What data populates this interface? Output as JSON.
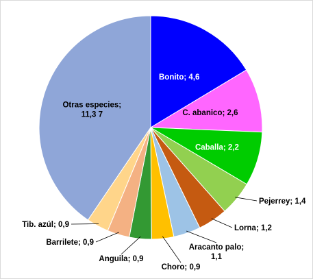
{
  "chart_data": {
    "type": "pie",
    "title": "",
    "start_angle_deg": 0,
    "direction": "clockwise",
    "legend": "none",
    "slices": [
      {
        "category": "Bonito",
        "value": 4.6,
        "label_lines": [
          "Bonito; 4,6"
        ],
        "color": "#0000FF",
        "label_color": "#FFFFFF",
        "label_mode": "inside"
      },
      {
        "category": "C. abanico",
        "value": 2.6,
        "label_lines": [
          "C. abanico; 2,6"
        ],
        "color": "#FF66FF",
        "label_color": "#000000",
        "label_mode": "inside"
      },
      {
        "category": "Caballa",
        "value": 2.2,
        "label_lines": [
          "Caballa; 2,2"
        ],
        "color": "#00CC00",
        "label_color": "#FFFFFF",
        "label_mode": "inside"
      },
      {
        "category": "Pejerrey",
        "value": 1.4,
        "label_lines": [
          "Pejerrey; 1,4"
        ],
        "color": "#92D050",
        "label_color": "#000000",
        "label_mode": "outside"
      },
      {
        "category": "Lorna",
        "value": 1.2,
        "label_lines": [
          "Lorna; 1,2"
        ],
        "color": "#C55A11",
        "label_color": "#000000",
        "label_mode": "outside"
      },
      {
        "category": "Aracanto palo",
        "value": 1.1,
        "label_lines": [
          "Aracanto palo;",
          "1,1"
        ],
        "color": "#9DC3E6",
        "label_color": "#000000",
        "label_mode": "outside"
      },
      {
        "category": "Choro",
        "value": 0.9,
        "label_lines": [
          "Choro; 0,9"
        ],
        "color": "#FFC000",
        "label_color": "#000000",
        "label_mode": "outside"
      },
      {
        "category": "Anguila",
        "value": 0.9,
        "label_lines": [
          "Anguila; 0,9"
        ],
        "color": "#339933",
        "label_color": "#000000",
        "label_mode": "outside"
      },
      {
        "category": "Barrilete",
        "value": 0.9,
        "label_lines": [
          "Barrilete; 0,9"
        ],
        "color": "#F4B183",
        "label_color": "#000000",
        "label_mode": "outside"
      },
      {
        "category": "Tib. azúl",
        "value": 0.9,
        "label_lines": [
          "Tib. azúl; 0,9"
        ],
        "color": "#FFD58A",
        "label_color": "#000000",
        "label_mode": "outside"
      },
      {
        "category": "Otras especies",
        "value": 11.37,
        "label_lines": [
          "Otras especies;",
          "11,3 7"
        ],
        "color": "#8FA6D8",
        "label_color": "#000000",
        "label_mode": "inside"
      }
    ]
  }
}
